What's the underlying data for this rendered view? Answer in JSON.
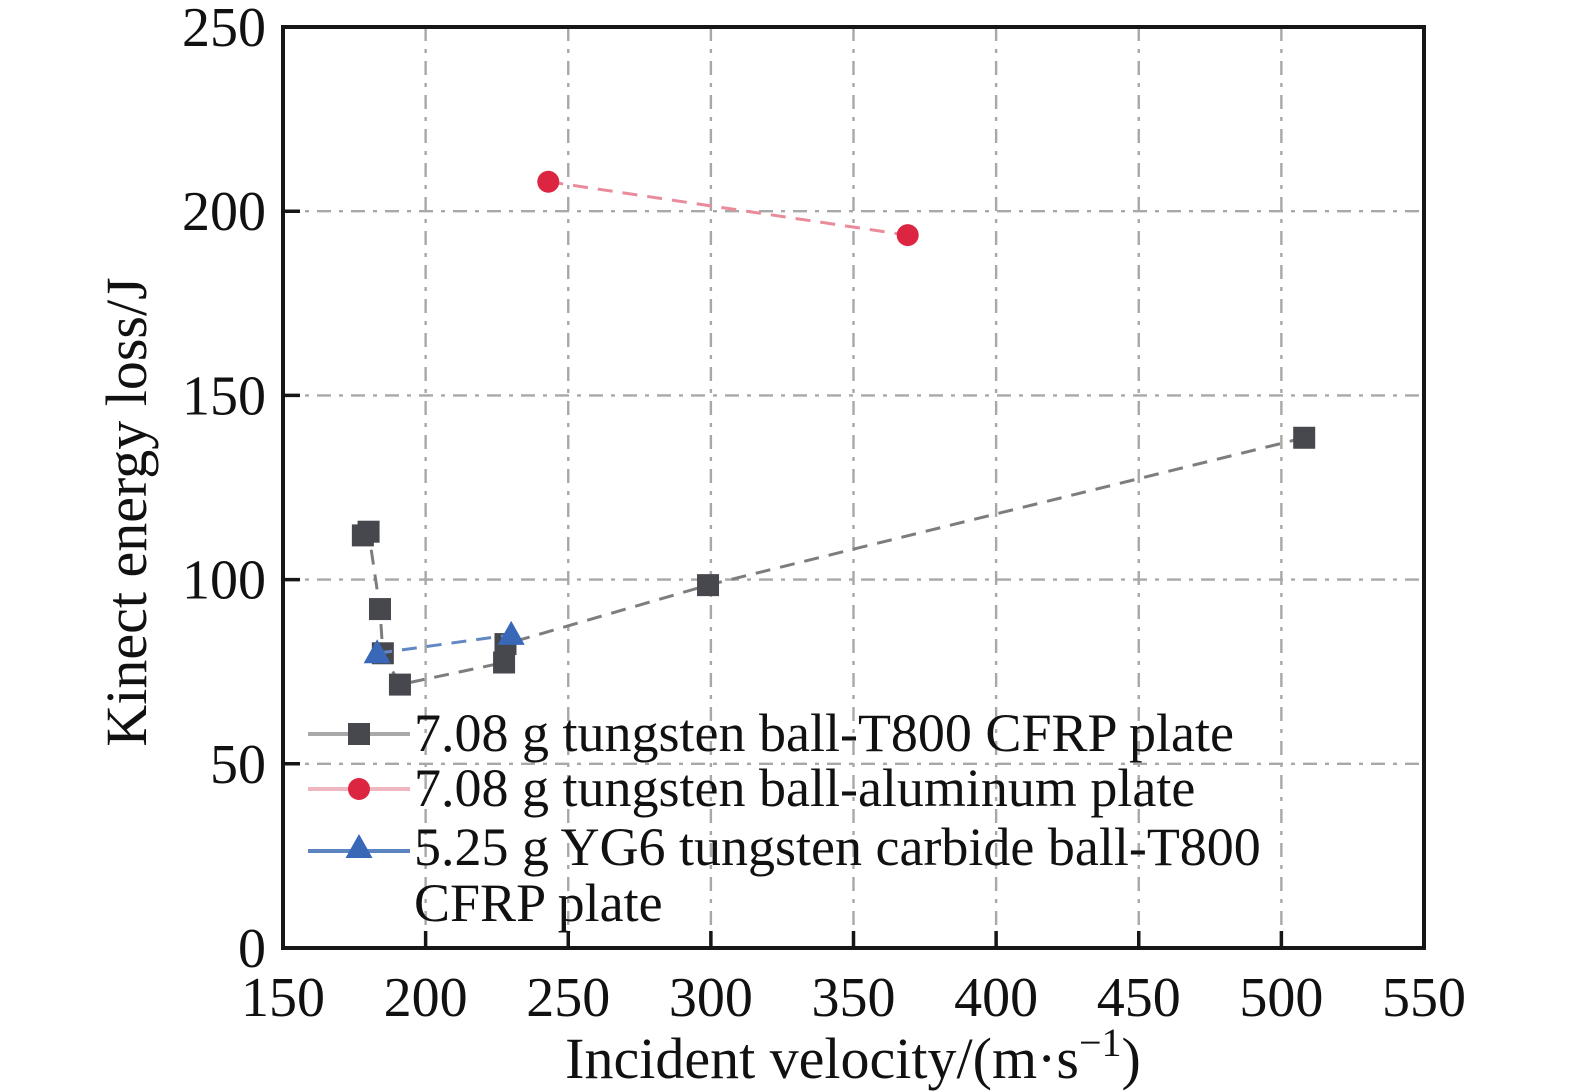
{
  "chart_data": {
    "type": "scatter",
    "title": "",
    "xlabel": {
      "pre": "Incident velocity/(m·s",
      "sup": "−1",
      "post": ")"
    },
    "ylabel": "Kinect energy loss/J",
    "xlim": [
      150,
      550
    ],
    "ylim": [
      0,
      250
    ],
    "xticks": [
      150,
      200,
      250,
      300,
      350,
      400,
      450,
      500,
      550
    ],
    "yticks": [
      0,
      50,
      100,
      150,
      200,
      250
    ],
    "grid": true,
    "grid_color": "#a8a8a8",
    "axis_color": "#161616",
    "legend_position": "lower-left-inside",
    "series": [
      {
        "name": "7.08 g tungsten ball-T800 CFRP plate",
        "marker": "square",
        "color": "#47484e",
        "line_color": "#7d7d7d",
        "legend_line_color": "#a9a9a9",
        "points": [
          [
            178,
            112
          ],
          [
            180,
            113
          ],
          [
            184,
            92
          ],
          [
            185,
            80
          ],
          [
            191,
            71.5
          ],
          [
            227.5,
            77.5
          ],
          [
            228,
            82.5
          ],
          [
            299,
            98.5
          ],
          [
            508,
            138.5
          ]
        ]
      },
      {
        "name": "7.08 g tungsten ball-aluminum plate",
        "marker": "circle",
        "color": "#dc2540",
        "line_color": "#ea8b9b",
        "legend_line_color": "#f0b6c0",
        "points": [
          [
            243,
            208
          ],
          [
            369,
            193.5
          ]
        ]
      },
      {
        "name": "5.25 g YG6 tungsten carbide ball-T800 CFRP plate",
        "legend_lines": [
          "5.25 g YG6 tungsten carbide ball-T800",
          "CFRP plate"
        ],
        "marker": "triangle",
        "color": "#3a68b8",
        "line_color": "#6288c4",
        "legend_line_color": "#5b84c0",
        "points": [
          [
            183,
            80
          ],
          [
            230,
            85
          ]
        ]
      }
    ]
  }
}
